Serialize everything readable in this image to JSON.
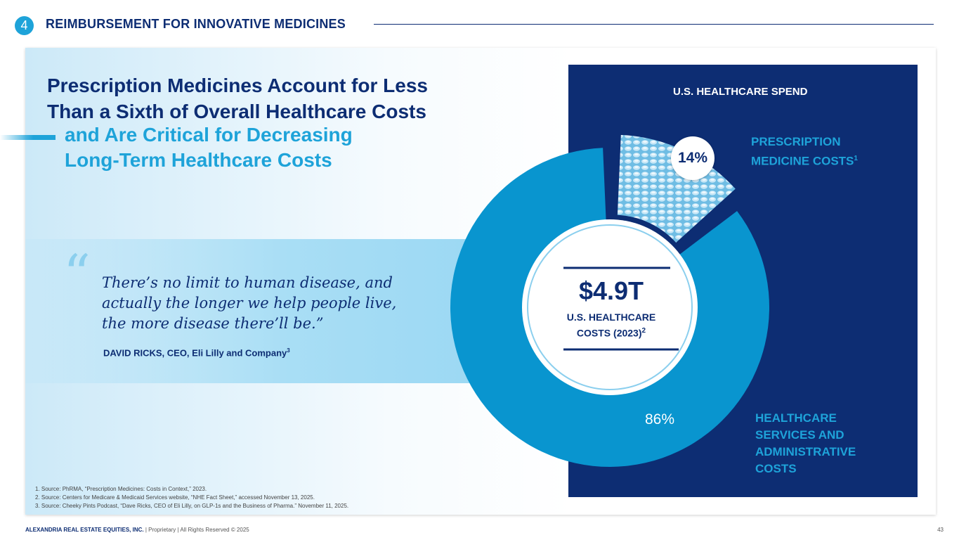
{
  "header": {
    "section_number": "4",
    "section_title": "REIMBURSEMENT FOR INNOVATIVE MEDICINES"
  },
  "headline": {
    "line1": "Prescription Medicines Account for Less",
    "line2": "Than a Sixth of Overall Healthcare Costs",
    "sub1": "and Are Critical for Decreasing",
    "sub2": "Long-Term Healthcare Costs"
  },
  "quote": {
    "marks": "“",
    "line1": "There’s no limit to human disease, and",
    "line2": "actually the longer we help people live,",
    "line3": "the more disease there’ll be.”",
    "attribution": "DAVID RICKS, CEO, Eli Lilly and Company",
    "attribution_ref": "3"
  },
  "chart_data": {
    "type": "pie",
    "title": "U.S. HEALTHCARE SPEND",
    "center_value": "$4.9T",
    "center_label_line1": "U.S. HEALTHCARE",
    "center_label_line2": "COSTS (2023)",
    "center_label_ref": "2",
    "slices": [
      {
        "label_line1": "PRESCRIPTION",
        "label_line2": "MEDICINE COSTS",
        "ref": "1",
        "value": 14,
        "display": "14%"
      },
      {
        "label_line1": "HEALTHCARE",
        "label_line2": "SERVICES AND",
        "label_line3": "ADMINISTRATIVE",
        "label_line4": "COSTS",
        "value": 86,
        "display": "86%"
      }
    ]
  },
  "footnotes": [
    "1.   Source: PhRMA, “Prescription Medicines: Costs in Context,” 2023.",
    "2.   Source: Centers for Medicare & Medicaid Services website, “NHE Fact Sheet,” accessed November 13, 2025.",
    "3.   Source: Cheeky Pints Podcast, “Dave Ricks, CEO of Eli Lilly, on GLP-1s and the Business of Pharma.” November 11, 2025."
  ],
  "footer": {
    "company": "ALEXANDRIA REAL ESTATE EQUITIES, INC.",
    "rights": " | Proprietary | All Rights Reserved © 2025",
    "page": "43"
  },
  "colors": {
    "navy": "#0d2d73",
    "accent_blue": "#1ea3d9",
    "donut_blue": "#0995cf",
    "rx_slice": "#7fc6e8"
  }
}
